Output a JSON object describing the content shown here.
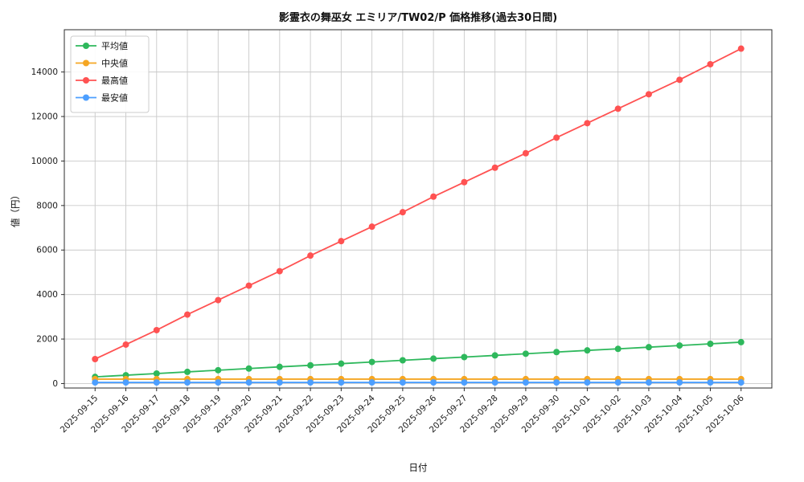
{
  "chart_data": {
    "type": "line",
    "title": "影霊衣の舞巫女 エミリア/TW02/P 価格推移(過去30日間)",
    "xlabel": "日付",
    "ylabel": "値（円）",
    "grid": true,
    "legend_position": "upper left",
    "ylim": [
      -200,
      15900
    ],
    "yticks": [
      0,
      2000,
      4000,
      6000,
      8000,
      10000,
      12000,
      14000
    ],
    "categories": [
      "2025-09-15",
      "2025-09-16",
      "2025-09-17",
      "2025-09-18",
      "2025-09-19",
      "2025-09-20",
      "2025-09-21",
      "2025-09-22",
      "2025-09-23",
      "2025-09-24",
      "2025-09-25",
      "2025-09-26",
      "2025-09-27",
      "2025-09-28",
      "2025-09-29",
      "2025-09-30",
      "2025-10-01",
      "2025-10-02",
      "2025-10-03",
      "2025-10-04",
      "2025-10-05",
      "2025-10-06"
    ],
    "series": [
      {
        "key": "avg",
        "name": "平均値",
        "color": "#2eb85c",
        "values": [
          300,
          375,
          450,
          525,
          600,
          675,
          750,
          820,
          895,
          970,
          1045,
          1120,
          1190,
          1265,
          1340,
          1415,
          1490,
          1560,
          1635,
          1710,
          1785,
          1860
        ]
      },
      {
        "key": "median",
        "name": "中央値",
        "color": "#f5a623",
        "values": [
          200,
          200,
          200,
          200,
          200,
          200,
          200,
          200,
          200,
          200,
          200,
          200,
          200,
          200,
          200,
          200,
          200,
          200,
          200,
          200,
          200,
          200
        ]
      },
      {
        "key": "max",
        "name": "最高値",
        "color": "#ff5252",
        "values": [
          1100,
          1750,
          2400,
          3100,
          3750,
          4400,
          5050,
          5750,
          6400,
          7050,
          7700,
          8400,
          9050,
          9700,
          10350,
          11050,
          11700,
          12350,
          13000,
          13650,
          14350,
          15050
        ]
      },
      {
        "key": "min",
        "name": "最安値",
        "color": "#4d9fff",
        "values": [
          50,
          50,
          50,
          50,
          50,
          50,
          50,
          50,
          50,
          50,
          50,
          50,
          50,
          50,
          50,
          50,
          50,
          50,
          50,
          50,
          50,
          50
        ]
      }
    ]
  }
}
